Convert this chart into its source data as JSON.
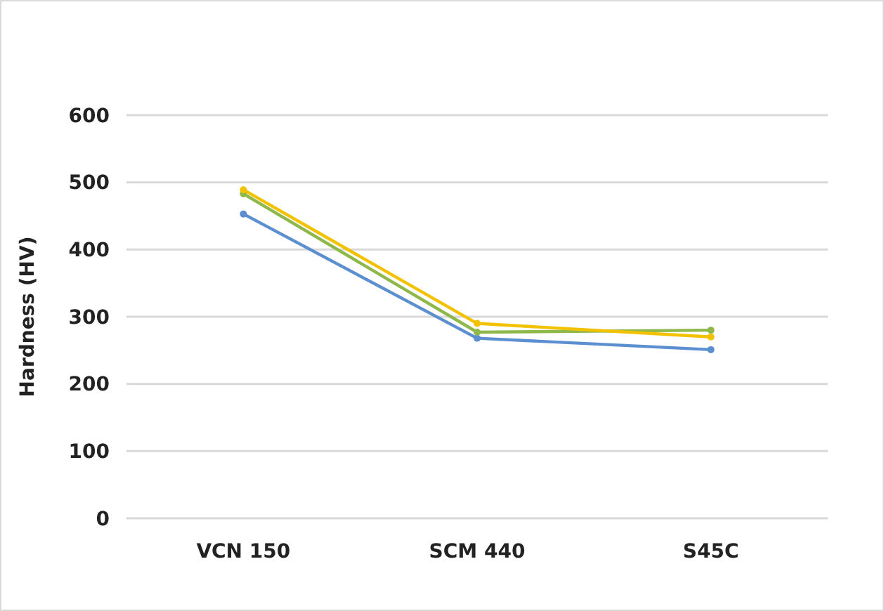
{
  "chart_data": {
    "type": "line",
    "ylabel": "Hardness (HV)",
    "categories": [
      "VCN 150",
      "SCM 440",
      "S45C"
    ],
    "series": [
      {
        "color": "#5b8fd0",
        "values": [
          453,
          268,
          251
        ]
      },
      {
        "color": "#8fb84a",
        "values": [
          483,
          277,
          280
        ]
      },
      {
        "color": "#f2c200",
        "values": [
          489,
          290,
          270
        ]
      }
    ],
    "ylim": [
      0,
      600
    ],
    "yticks": [
      0,
      100,
      200,
      300,
      400,
      500,
      600
    ],
    "grid": "y",
    "marker": "circle"
  }
}
